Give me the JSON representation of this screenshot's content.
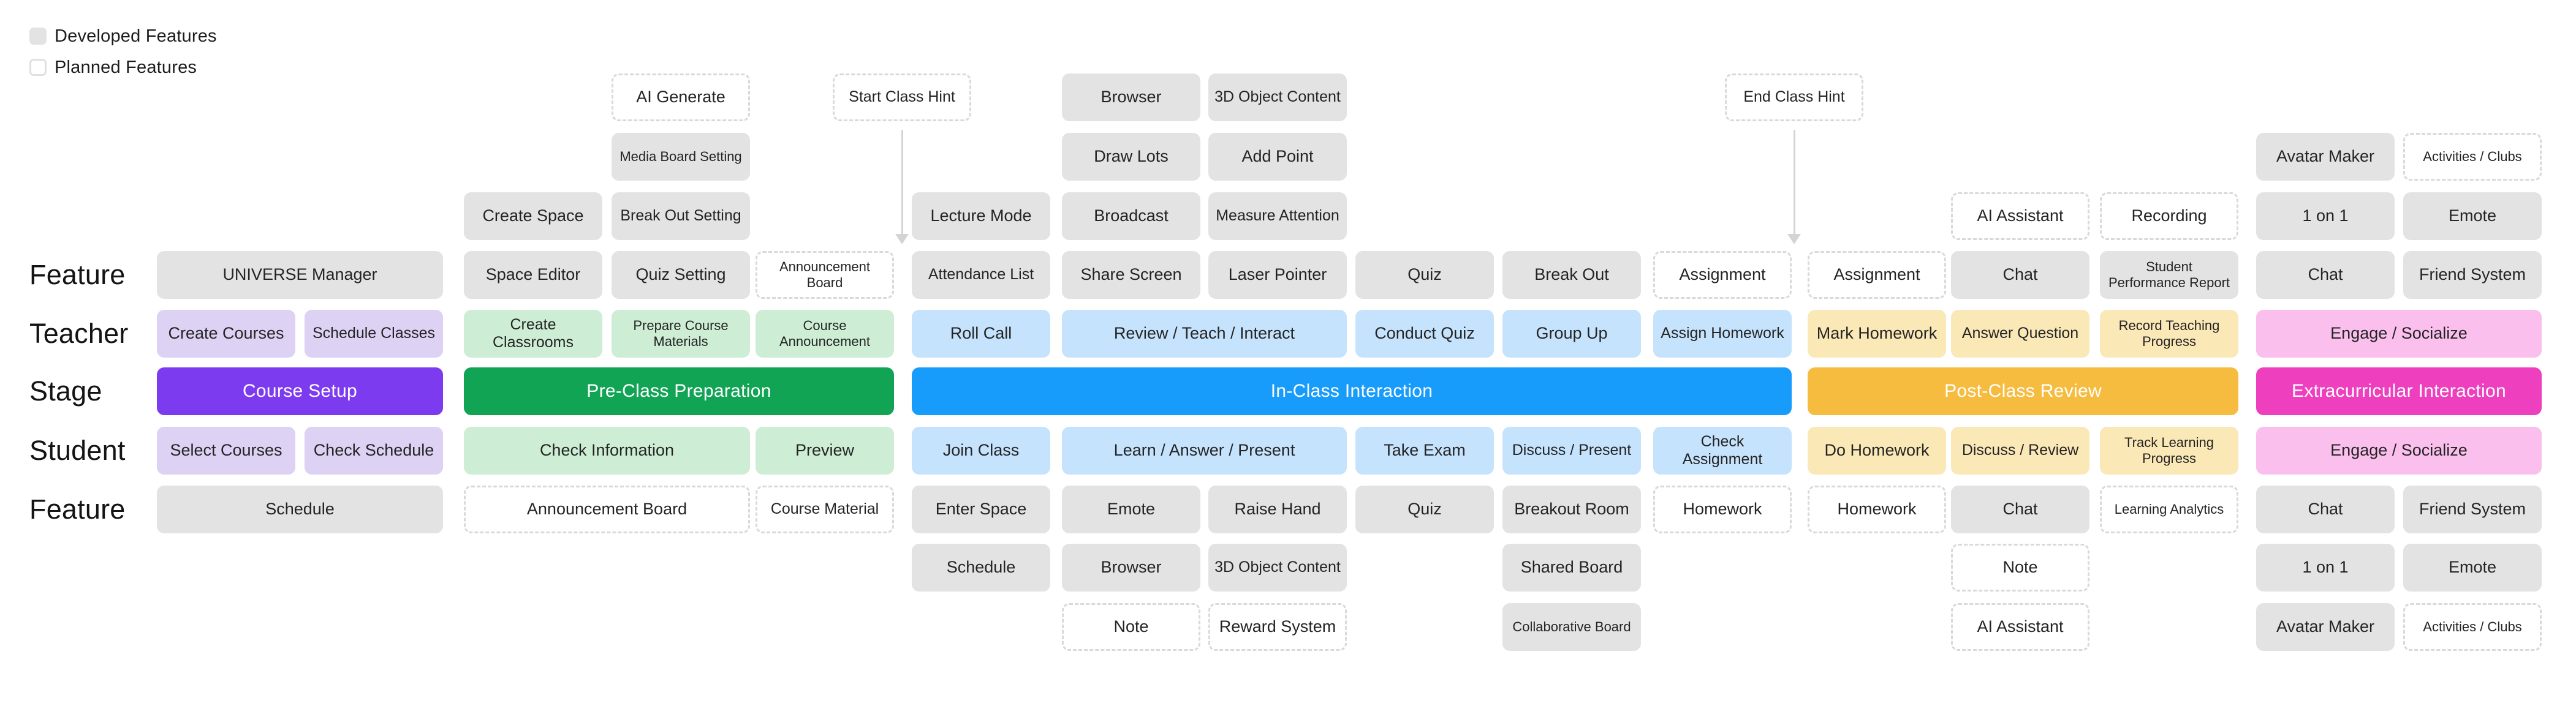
{
  "legend": {
    "items": [
      {
        "label": "Developed Features",
        "type": "developed"
      },
      {
        "label": "Planned Features",
        "type": "planned"
      }
    ]
  },
  "row_labels": [
    {
      "text": "Feature"
    },
    {
      "text": "Teacher"
    },
    {
      "text": "Stage"
    },
    {
      "text": "Student"
    },
    {
      "text": "Feature"
    }
  ],
  "colors": {
    "gray": "#e3e3e3",
    "purple": "#7d3bf0",
    "purpleLight": "#ddd1f4",
    "green": "#12a455",
    "greenLight": "#cdeed5",
    "blue": "#189cfb",
    "blueLight": "#c6e3fd",
    "amber": "#f6bc3f",
    "amberLight": "#fbe8b7",
    "pink": "#ee3fbf",
    "pinkLight": "#fbbfee",
    "dashedBorder": "#d9d9d9",
    "arrow": "#d4d4d4",
    "text": "#242424"
  },
  "hints": [
    {
      "label": "Start Class Hint"
    },
    {
      "label": "End Class Hint"
    }
  ],
  "boxes": [
    {
      "label": "AI Generate",
      "row": 0,
      "col": 4,
      "span": 1,
      "fill": "planned"
    },
    {
      "label": "Browser",
      "row": 0,
      "col": 7,
      "span": 1,
      "fill": "gray"
    },
    {
      "label": "3D Object Content",
      "row": 0,
      "col": 8,
      "span": 1,
      "fill": "gray"
    },
    {
      "label": "Media Board Setting",
      "row": 1,
      "col": 4,
      "span": 1,
      "fill": "gray"
    },
    {
      "label": "Draw Lots",
      "row": 1,
      "col": 7,
      "span": 1,
      "fill": "gray"
    },
    {
      "label": "Add Point",
      "row": 1,
      "col": 8,
      "span": 1,
      "fill": "gray"
    },
    {
      "label": "Avatar Maker",
      "row": 1,
      "col": 15,
      "span": 1,
      "fill": "gray"
    },
    {
      "label": "Activities / Clubs",
      "row": 1,
      "col": 16,
      "span": 1,
      "fill": "planned"
    },
    {
      "label": "Create Space",
      "row": 2,
      "col": 3,
      "span": 1,
      "fill": "gray"
    },
    {
      "label": "Break Out Setting",
      "row": 2,
      "col": 4,
      "span": 1,
      "fill": "gray"
    },
    {
      "label": "Lecture Mode",
      "row": 2,
      "col": 6,
      "span": 1,
      "fill": "gray"
    },
    {
      "label": "Broadcast",
      "row": 2,
      "col": 7,
      "span": 1,
      "fill": "gray"
    },
    {
      "label": "Measure Attention",
      "row": 2,
      "col": 8,
      "span": 1,
      "fill": "gray"
    },
    {
      "label": "AI Assistant",
      "row": 2,
      "col": 13,
      "span": 1,
      "fill": "planned"
    },
    {
      "label": "Recording",
      "row": 2,
      "col": 14,
      "span": 1,
      "fill": "planned"
    },
    {
      "label": "1 on 1",
      "row": 2,
      "col": 15,
      "span": 1,
      "fill": "gray"
    },
    {
      "label": "Emote",
      "row": 2,
      "col": 16,
      "span": 1,
      "fill": "gray"
    },
    {
      "label": "UNIVERSE Manager",
      "row": 3,
      "col": 1,
      "span": 2,
      "fill": "gray"
    },
    {
      "label": "Space Editor",
      "row": 3,
      "col": 3,
      "span": 1,
      "fill": "gray"
    },
    {
      "label": "Quiz Setting",
      "row": 3,
      "col": 4,
      "span": 1,
      "fill": "gray"
    },
    {
      "label": "Announcement Board",
      "row": 3,
      "col": 5,
      "span": 1,
      "fill": "planned"
    },
    {
      "label": "Attendance List",
      "row": 3,
      "col": 6,
      "span": 1,
      "fill": "gray"
    },
    {
      "label": "Share Screen",
      "row": 3,
      "col": 7,
      "span": 1,
      "fill": "gray"
    },
    {
      "label": "Laser Pointer",
      "row": 3,
      "col": 8,
      "span": 1,
      "fill": "gray"
    },
    {
      "label": "Quiz",
      "row": 3,
      "col": 9,
      "span": 1,
      "fill": "gray"
    },
    {
      "label": "Break Out",
      "row": 3,
      "col": 10,
      "span": 1,
      "fill": "gray"
    },
    {
      "label": "Assignment",
      "row": 3,
      "col": 11,
      "span": 1,
      "fill": "planned"
    },
    {
      "label": "Assignment",
      "row": 3,
      "col": 12,
      "span": 1,
      "fill": "planned"
    },
    {
      "label": "Chat",
      "row": 3,
      "col": 13,
      "span": 1,
      "fill": "gray"
    },
    {
      "label": "Student Performance Report",
      "row": 3,
      "col": 14,
      "span": 1,
      "fill": "gray"
    },
    {
      "label": "Chat",
      "row": 3,
      "col": 15,
      "span": 1,
      "fill": "gray"
    },
    {
      "label": "Friend System",
      "row": 3,
      "col": 16,
      "span": 1,
      "fill": "gray"
    },
    {
      "label": "Create Courses",
      "row": 4,
      "col": 1,
      "span": 1,
      "fill": "purpleLight"
    },
    {
      "label": "Schedule Classes",
      "row": 4,
      "col": 2,
      "span": 1,
      "fill": "purpleLight"
    },
    {
      "label": "Create Classrooms",
      "row": 4,
      "col": 3,
      "span": 1,
      "fill": "greenLight"
    },
    {
      "label": "Prepare Course Materials",
      "row": 4,
      "col": 4,
      "span": 1,
      "fill": "greenLight"
    },
    {
      "label": "Course Announcement",
      "row": 4,
      "col": 5,
      "span": 1,
      "fill": "greenLight"
    },
    {
      "label": "Roll Call",
      "row": 4,
      "col": 6,
      "span": 1,
      "fill": "blueLight"
    },
    {
      "label": "Review / Teach / Interact",
      "row": 4,
      "col": 7,
      "span": 2,
      "fill": "blueLight"
    },
    {
      "label": "Conduct Quiz",
      "row": 4,
      "col": 9,
      "span": 1,
      "fill": "blueLight"
    },
    {
      "label": "Group Up",
      "row": 4,
      "col": 10,
      "span": 1,
      "fill": "blueLight"
    },
    {
      "label": "Assign Homework",
      "row": 4,
      "col": 11,
      "span": 1,
      "fill": "blueLight"
    },
    {
      "label": "Mark Homework",
      "row": 4,
      "col": 12,
      "span": 1,
      "fill": "amberLight"
    },
    {
      "label": "Answer Question",
      "row": 4,
      "col": 13,
      "span": 1,
      "fill": "amberLight"
    },
    {
      "label": "Record Teaching Progress",
      "row": 4,
      "col": 14,
      "span": 1,
      "fill": "amberLight"
    },
    {
      "label": "Engage / Socialize",
      "row": 4,
      "col": 15,
      "span": 2,
      "fill": "pinkLight"
    },
    {
      "label": "Course Setup",
      "row": 5,
      "col": 1,
      "span": 2,
      "fill": "purple",
      "stage": true
    },
    {
      "label": "Pre-Class Preparation",
      "row": 5,
      "col": 3,
      "span": 3,
      "fill": "green",
      "stage": true
    },
    {
      "label": "In-Class Interaction",
      "row": 5,
      "col": 6,
      "span": 6,
      "fill": "blue",
      "stage": true
    },
    {
      "label": "Post-Class Review",
      "row": 5,
      "col": 12,
      "span": 3,
      "fill": "amber",
      "stage": true
    },
    {
      "label": "Extracurricular Interaction",
      "row": 5,
      "col": 15,
      "span": 2,
      "fill": "pink",
      "stage": true
    },
    {
      "label": "Select Courses",
      "row": 6,
      "col": 1,
      "span": 1,
      "fill": "purpleLight"
    },
    {
      "label": "Check Schedule",
      "row": 6,
      "col": 2,
      "span": 1,
      "fill": "purpleLight"
    },
    {
      "label": "Check Information",
      "row": 6,
      "col": 3,
      "span": 2,
      "fill": "greenLight"
    },
    {
      "label": "Preview",
      "row": 6,
      "col": 5,
      "span": 1,
      "fill": "greenLight"
    },
    {
      "label": "Join Class",
      "row": 6,
      "col": 6,
      "span": 1,
      "fill": "blueLight"
    },
    {
      "label": "Learn / Answer / Present",
      "row": 6,
      "col": 7,
      "span": 2,
      "fill": "blueLight"
    },
    {
      "label": "Take Exam",
      "row": 6,
      "col": 9,
      "span": 1,
      "fill": "blueLight"
    },
    {
      "label": "Discuss / Present",
      "row": 6,
      "col": 10,
      "span": 1,
      "fill": "blueLight"
    },
    {
      "label": "Check Assignment",
      "row": 6,
      "col": 11,
      "span": 1,
      "fill": "blueLight"
    },
    {
      "label": "Do Homework",
      "row": 6,
      "col": 12,
      "span": 1,
      "fill": "amberLight"
    },
    {
      "label": "Discuss / Review",
      "row": 6,
      "col": 13,
      "span": 1,
      "fill": "amberLight"
    },
    {
      "label": "Track Learning Progress",
      "row": 6,
      "col": 14,
      "span": 1,
      "fill": "amberLight"
    },
    {
      "label": "Engage / Socialize",
      "row": 6,
      "col": 15,
      "span": 2,
      "fill": "pinkLight"
    },
    {
      "label": "Schedule",
      "row": 7,
      "col": 1,
      "span": 2,
      "fill": "gray"
    },
    {
      "label": "Announcement Board",
      "row": 7,
      "col": 3,
      "span": 2,
      "fill": "planned"
    },
    {
      "label": "Course Material",
      "row": 7,
      "col": 5,
      "span": 1,
      "fill": "planned"
    },
    {
      "label": "Enter Space",
      "row": 7,
      "col": 6,
      "span": 1,
      "fill": "gray"
    },
    {
      "label": "Emote",
      "row": 7,
      "col": 7,
      "span": 1,
      "fill": "gray"
    },
    {
      "label": "Raise Hand",
      "row": 7,
      "col": 8,
      "span": 1,
      "fill": "gray"
    },
    {
      "label": "Quiz",
      "row": 7,
      "col": 9,
      "span": 1,
      "fill": "gray"
    },
    {
      "label": "Breakout Room",
      "row": 7,
      "col": 10,
      "span": 1,
      "fill": "gray"
    },
    {
      "label": "Homework",
      "row": 7,
      "col": 11,
      "span": 1,
      "fill": "planned"
    },
    {
      "label": "Homework",
      "row": 7,
      "col": 12,
      "span": 1,
      "fill": "planned"
    },
    {
      "label": "Chat",
      "row": 7,
      "col": 13,
      "span": 1,
      "fill": "gray"
    },
    {
      "label": "Learning Analytics",
      "row": 7,
      "col": 14,
      "span": 1,
      "fill": "planned"
    },
    {
      "label": "Chat",
      "row": 7,
      "col": 15,
      "span": 1,
      "fill": "gray"
    },
    {
      "label": "Friend System",
      "row": 7,
      "col": 16,
      "span": 1,
      "fill": "gray"
    },
    {
      "label": "Schedule",
      "row": 8,
      "col": 6,
      "span": 1,
      "fill": "gray"
    },
    {
      "label": "Browser",
      "row": 8,
      "col": 7,
      "span": 1,
      "fill": "gray"
    },
    {
      "label": "3D Object Content",
      "row": 8,
      "col": 8,
      "span": 1,
      "fill": "gray"
    },
    {
      "label": "Shared Board",
      "row": 8,
      "col": 10,
      "span": 1,
      "fill": "gray"
    },
    {
      "label": "Note",
      "row": 8,
      "col": 13,
      "span": 1,
      "fill": "planned"
    },
    {
      "label": "1 on 1",
      "row": 8,
      "col": 15,
      "span": 1,
      "fill": "gray"
    },
    {
      "label": "Emote",
      "row": 8,
      "col": 16,
      "span": 1,
      "fill": "gray"
    },
    {
      "label": "Note",
      "row": 9,
      "col": 7,
      "span": 1,
      "fill": "planned"
    },
    {
      "label": "Reward System",
      "row": 9,
      "col": 8,
      "span": 1,
      "fill": "planned"
    },
    {
      "label": "Collaborative Board",
      "row": 9,
      "col": 10,
      "span": 1,
      "fill": "gray"
    },
    {
      "label": "AI Assistant",
      "row": 9,
      "col": 13,
      "span": 1,
      "fill": "planned"
    },
    {
      "label": "Avatar Maker",
      "row": 9,
      "col": 15,
      "span": 1,
      "fill": "gray"
    },
    {
      "label": "Activities / Clubs",
      "row": 9,
      "col": 16,
      "span": 1,
      "fill": "planned"
    }
  ]
}
